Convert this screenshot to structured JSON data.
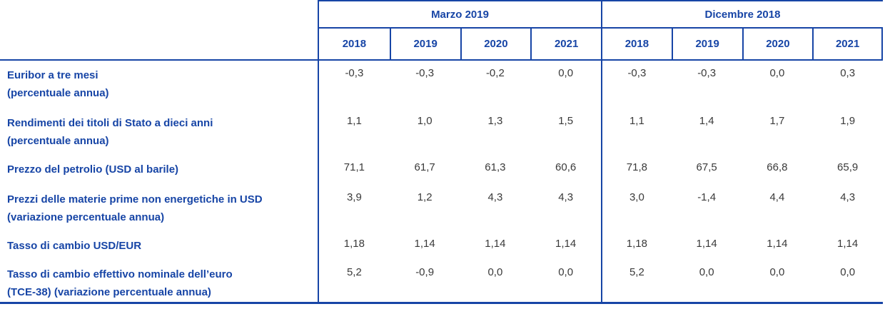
{
  "chart_data": {
    "type": "table",
    "title": "",
    "column_groups": [
      "Marzo 2019",
      "Dicembre 2018"
    ],
    "columns": [
      "2018",
      "2019",
      "2020",
      "2021",
      "2018",
      "2019",
      "2020",
      "2021"
    ],
    "rows": [
      {
        "label_line1": "Euribor a tre mesi",
        "label_line2": "(percentuale annua)",
        "values": [
          "-0,3",
          "-0,3",
          "-0,2",
          "0,0",
          "-0,3",
          "-0,3",
          "0,0",
          "0,3"
        ]
      },
      {
        "label_line1": "Rendimenti dei titoli di Stato a dieci anni",
        "label_line2": "(percentuale annua)",
        "values": [
          "1,1",
          "1,0",
          "1,3",
          "1,5",
          "1,1",
          "1,4",
          "1,7",
          "1,9"
        ]
      },
      {
        "label_line1": "Prezzo del petrolio (USD al barile)",
        "label_line2": "",
        "values": [
          "71,1",
          "61,7",
          "61,3",
          "60,6",
          "71,8",
          "67,5",
          "66,8",
          "65,9"
        ]
      },
      {
        "label_line1": "Prezzi delle materie prime non energetiche in USD",
        "label_line2": "(variazione percentuale annua)",
        "values": [
          "3,9",
          "1,2",
          "4,3",
          "4,3",
          "3,0",
          "-1,4",
          "4,4",
          "4,3"
        ]
      },
      {
        "label_line1": "Tasso di cambio USD/EUR",
        "label_line2": "",
        "values": [
          "1,18",
          "1,14",
          "1,14",
          "1,14",
          "1,18",
          "1,14",
          "1,14",
          "1,14"
        ]
      },
      {
        "label_line1": "Tasso di cambio effettivo nominale dell’euro",
        "label_line2": "(TCE-38) (variazione percentuale annua)",
        "values": [
          "5,2",
          "-0,9",
          "0,0",
          "0,0",
          "5,2",
          "0,0",
          "0,0",
          "0,0"
        ]
      }
    ],
    "layout": {
      "grid": "off",
      "legend": "none",
      "header_rows": 2,
      "data_columns_per_group": 4
    }
  },
  "colors": {
    "accent_blue": "#1745A6",
    "value_text": "#3A3A3A",
    "background": "#FFFFFF"
  }
}
